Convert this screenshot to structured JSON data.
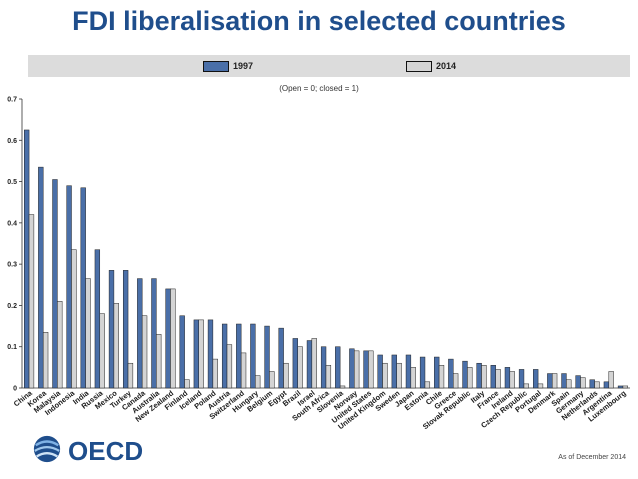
{
  "title": "FDI liberalisation in selected countries",
  "footnote": "As of December 2014",
  "logo_text": "OECD",
  "colors": {
    "series_1997": "#4a6fa8",
    "series_2014": "#d4d4d4",
    "title": "#1f4e8c"
  },
  "chart_data": {
    "type": "bar",
    "subtitle": "(Open = 0; closed = 1)",
    "ylim": [
      0,
      0.7
    ],
    "yticks": [
      "0",
      "0.1",
      "0.2",
      "0.3",
      "0.4",
      "0.5",
      "0.6",
      "0.7"
    ],
    "ytick_values": [
      0,
      0.1,
      0.2,
      0.3,
      0.4,
      0.5,
      0.6,
      0.7
    ],
    "legend_position": "top",
    "grid": false,
    "categories": [
      "China",
      "Korea",
      "Malaysia",
      "Indonesia",
      "India",
      "Russia",
      "Mexico",
      "Turkey",
      "Canada",
      "Australia",
      "New Zealand",
      "Finland",
      "Iceland",
      "Poland",
      "Austria",
      "Switzerland",
      "Hungary",
      "Belgium",
      "Egypt",
      "Brazil",
      "Israel",
      "South Africa",
      "Slovenia",
      "Norway",
      "United States",
      "United Kingdom",
      "Sweden",
      "Japan",
      "Estonia",
      "Chile",
      "Greece",
      "Slovak Republic",
      "Italy",
      "France",
      "Ireland",
      "Czech Republic",
      "Portugal",
      "Denmark",
      "Spain",
      "Germany",
      "Netherlands",
      "Argentina",
      "Luxembourg"
    ],
    "series": [
      {
        "name": "1997",
        "values": [
          0.625,
          0.535,
          0.505,
          0.49,
          0.485,
          0.335,
          0.285,
          0.285,
          0.265,
          0.265,
          0.24,
          0.175,
          0.165,
          0.165,
          0.155,
          0.155,
          0.155,
          0.15,
          0.145,
          0.12,
          0.115,
          0.1,
          0.1,
          0.095,
          0.09,
          0.08,
          0.08,
          0.08,
          0.075,
          0.075,
          0.07,
          0.065,
          0.06,
          0.055,
          0.05,
          0.045,
          0.045,
          0.035,
          0.035,
          0.03,
          0.02,
          0.015,
          0.005
        ]
      },
      {
        "name": "2014",
        "values": [
          0.42,
          0.135,
          0.21,
          0.335,
          0.265,
          0.18,
          0.205,
          0.06,
          0.175,
          0.13,
          0.24,
          0.02,
          0.165,
          0.07,
          0.105,
          0.085,
          0.03,
          0.04,
          0.06,
          0.1,
          0.12,
          0.055,
          0.005,
          0.09,
          0.09,
          0.06,
          0.06,
          0.05,
          0.015,
          0.055,
          0.035,
          0.05,
          0.055,
          0.045,
          0.04,
          0.01,
          0.01,
          0.035,
          0.02,
          0.025,
          0.015,
          0.04,
          0.005
        ]
      }
    ]
  }
}
